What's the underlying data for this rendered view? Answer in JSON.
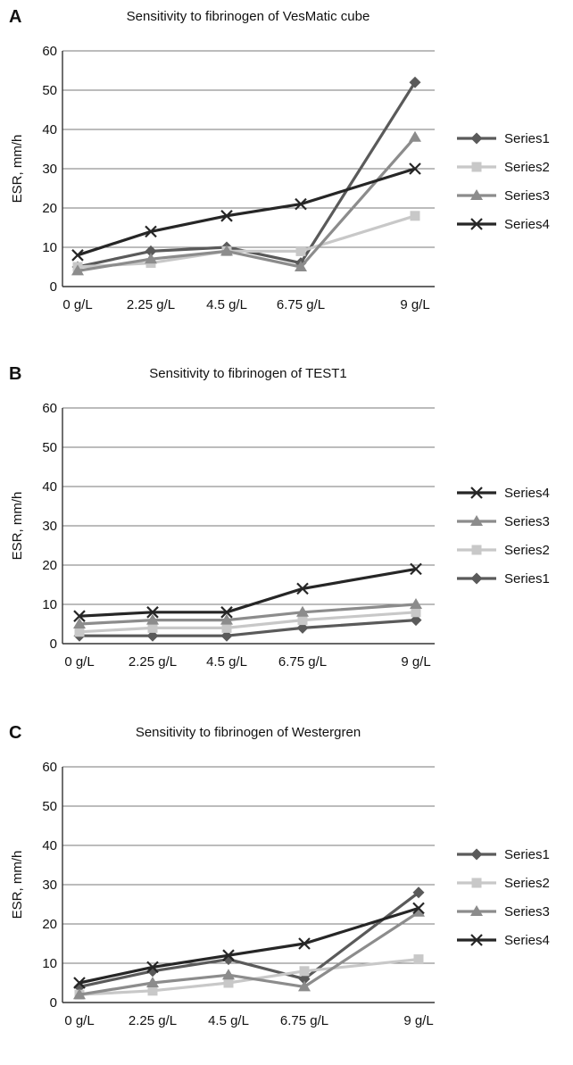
{
  "chart_data": [
    {
      "panel_label": "A",
      "type": "line",
      "title": "Sensitivity to fibrinogen of VesMatic cube",
      "xlabel": "",
      "ylabel": "ESR, mm/h",
      "categories": [
        "0 g/L",
        "2.25 g/L",
        "4.5 g/L",
        "6.75 g/L",
        "9 g/L"
      ],
      "ylim": [
        0,
        60
      ],
      "yticks": [
        0,
        10,
        20,
        30,
        40,
        50,
        60
      ],
      "grid": true,
      "legend_position": "right",
      "legend_order": [
        "Series1",
        "Series2",
        "Series3",
        "Series4"
      ],
      "series": [
        {
          "name": "Series1",
          "values": [
            5,
            9,
            10,
            6,
            52
          ],
          "color": "#5a5a5a",
          "marker": "diamond"
        },
        {
          "name": "Series2",
          "values": [
            5,
            6,
            9,
            9,
            18
          ],
          "color": "#c8c8c8",
          "marker": "square"
        },
        {
          "name": "Series3",
          "values": [
            4,
            7,
            9,
            5,
            38
          ],
          "color": "#8c8c8c",
          "marker": "triangle"
        },
        {
          "name": "Series4",
          "values": [
            8,
            14,
            18,
            21,
            30
          ],
          "color": "#262626",
          "marker": "x"
        }
      ]
    },
    {
      "panel_label": "B",
      "type": "line",
      "title": "Sensitivity to fibrinogen of TEST1",
      "xlabel": "",
      "ylabel": "ESR, mm/h",
      "categories": [
        "0 g/L",
        "2.25 g/L",
        "4.5 g/L",
        "6.75 g/L",
        "9 g/L"
      ],
      "ylim": [
        0,
        60
      ],
      "yticks": [
        0,
        10,
        20,
        30,
        40,
        50,
        60
      ],
      "grid": true,
      "legend_position": "right",
      "legend_order": [
        "Series4",
        "Series3",
        "Series2",
        "Series1"
      ],
      "series": [
        {
          "name": "Series1",
          "values": [
            2,
            2,
            2,
            4,
            6
          ],
          "color": "#5a5a5a",
          "marker": "diamond"
        },
        {
          "name": "Series2",
          "values": [
            3,
            4,
            4,
            6,
            8
          ],
          "color": "#c8c8c8",
          "marker": "square"
        },
        {
          "name": "Series3",
          "values": [
            5,
            6,
            6,
            8,
            10
          ],
          "color": "#8c8c8c",
          "marker": "triangle"
        },
        {
          "name": "Series4",
          "values": [
            7,
            8,
            8,
            14,
            19
          ],
          "color": "#262626",
          "marker": "x"
        }
      ]
    },
    {
      "panel_label": "C",
      "type": "line",
      "title": "Sensitivity to fibrinogen of Westergren",
      "xlabel": "",
      "ylabel": "ESR, mm/h",
      "categories": [
        "0 g/L",
        "2.25 g/L",
        "4.5 g/L",
        "6.75 g/L",
        "9 g/L"
      ],
      "ylim": [
        0,
        60
      ],
      "yticks": [
        0,
        10,
        20,
        30,
        40,
        50,
        60
      ],
      "grid": true,
      "legend_position": "right",
      "legend_order": [
        "Series1",
        "Series2",
        "Series3",
        "Series4"
      ],
      "series": [
        {
          "name": "Series1",
          "values": [
            4,
            8,
            11,
            6,
            28
          ],
          "color": "#5a5a5a",
          "marker": "diamond"
        },
        {
          "name": "Series2",
          "values": [
            2,
            3,
            5,
            8,
            11
          ],
          "color": "#c8c8c8",
          "marker": "square"
        },
        {
          "name": "Series3",
          "values": [
            2,
            5,
            7,
            4,
            23
          ],
          "color": "#8c8c8c",
          "marker": "triangle"
        },
        {
          "name": "Series4",
          "values": [
            5,
            9,
            12,
            15,
            24
          ],
          "color": "#262626",
          "marker": "x"
        }
      ]
    }
  ]
}
